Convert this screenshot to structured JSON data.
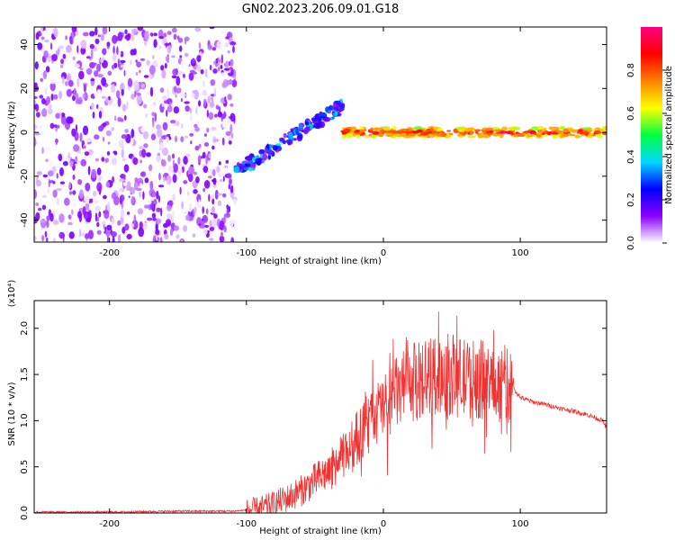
{
  "chart_data": [
    {
      "type": "heatmap",
      "title": "GN02.2023.206.09.01.G18",
      "xlabel": "Height of straight line (km)",
      "ylabel": "Frequency (Hz)",
      "xlim": [
        -255,
        163
      ],
      "ylim": [
        -50,
        48
      ],
      "xticks": [
        -200,
        -100,
        0,
        100
      ],
      "yticks": [
        -40,
        -20,
        0,
        20,
        40
      ],
      "colorbar": {
        "label": "Normalized spectral amplitude",
        "range": [
          0,
          1
        ],
        "ticks": [
          "0.0",
          "0.2",
          "0.4",
          "0.6",
          "0.8"
        ],
        "colors": [
          "#ffffff",
          "#8a00ff",
          "#0000ff",
          "#00d8ff",
          "#00ff40",
          "#ffff00",
          "#ff8000",
          "#ff0000",
          "#ff0080"
        ]
      },
      "regions": [
        {
          "x_range": [
            -255,
            -108
          ],
          "f_range": [
            -50,
            48
          ],
          "amplitude_range": [
            0.0,
            0.15
          ],
          "pattern": "scattered noise"
        },
        {
          "x_range": [
            -108,
            -30
          ],
          "f_start": -18,
          "f_end": 12,
          "amplitude_range": [
            0.1,
            0.4
          ],
          "pattern": "rising track"
        },
        {
          "x_range": [
            -30,
            163
          ],
          "f_center": 0,
          "amplitude_range": [
            0.5,
            0.95
          ],
          "pattern": "steady line near 0 Hz"
        }
      ]
    },
    {
      "type": "line",
      "xlabel": "Height of straight line (km)",
      "ylabel": "SNR (10 * v/v)",
      "y_multiplier": "(x10⁴)",
      "xlim": [
        -255,
        163
      ],
      "ylim": [
        0,
        2.3
      ],
      "xticks": [
        -200,
        -100,
        0,
        100
      ],
      "yticks": [
        "0.0",
        "0.5",
        "1.0",
        "1.5",
        "2.0"
      ],
      "color": "#ee3333",
      "x": [
        -255,
        -200,
        -150,
        -110,
        -100,
        -90,
        -80,
        -70,
        -60,
        -50,
        -40,
        -30,
        -20,
        -10,
        0,
        10,
        20,
        30,
        40,
        50,
        60,
        70,
        80,
        90,
        95,
        100,
        110,
        120,
        130,
        140,
        150,
        160,
        163
      ],
      "y": [
        0.01,
        0.01,
        0.02,
        0.02,
        0.03,
        0.05,
        0.1,
        0.16,
        0.24,
        0.35,
        0.45,
        0.6,
        0.8,
        1.0,
        1.15,
        1.3,
        1.4,
        1.45,
        1.5,
        1.5,
        1.45,
        1.45,
        1.4,
        1.4,
        1.35,
        1.25,
        1.2,
        1.17,
        1.13,
        1.1,
        1.06,
        1.0,
        0.92
      ]
    }
  ]
}
